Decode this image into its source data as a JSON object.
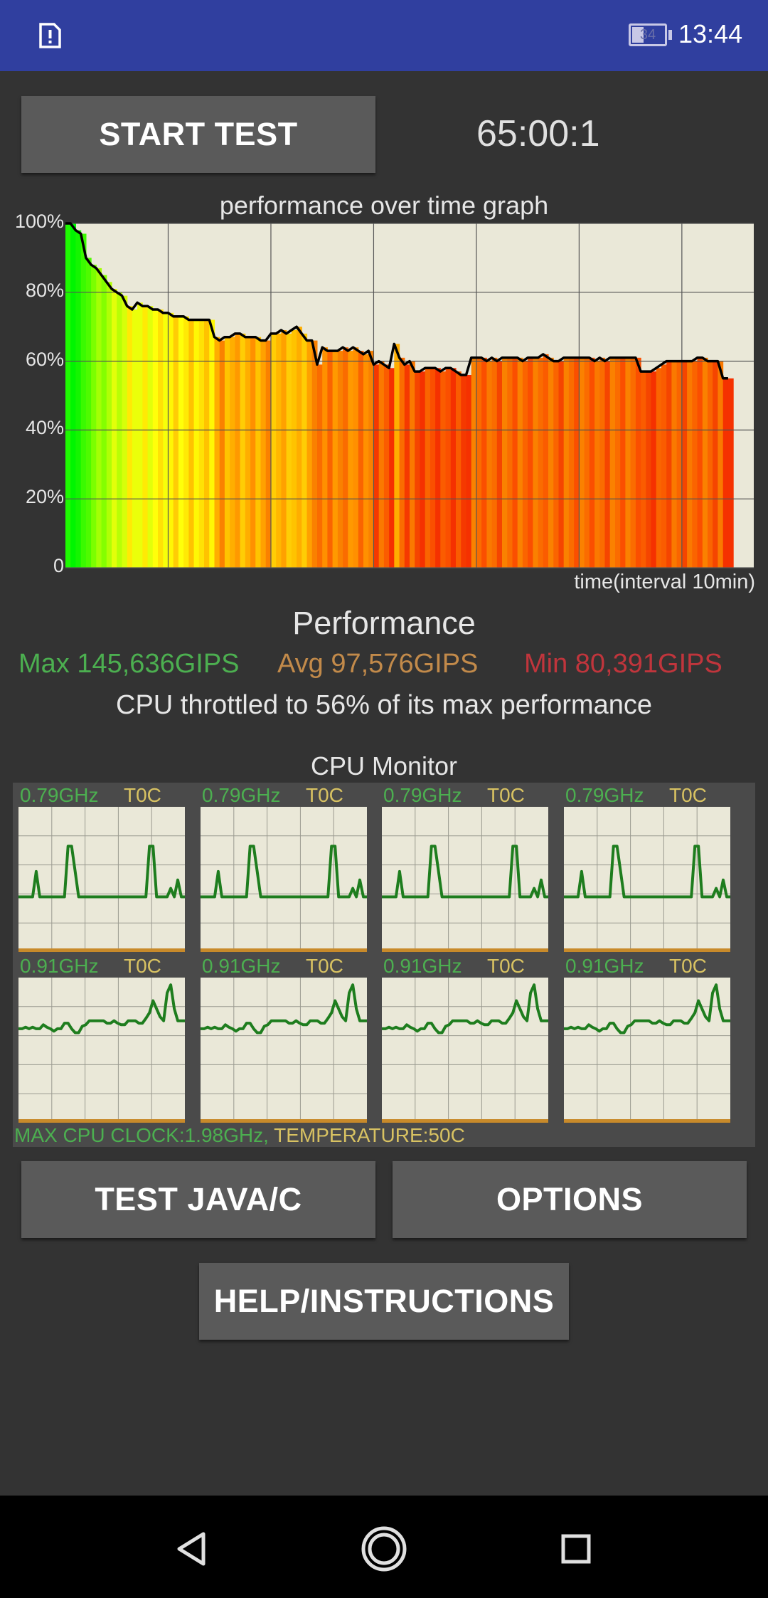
{
  "status_bar": {
    "battery_level": "34",
    "time": "13:44",
    "notification_icon": "alert-document-icon"
  },
  "controls": {
    "start_label": "START TEST",
    "timer": "65:00:1"
  },
  "performance_graph": {
    "title": "performance over time graph",
    "y_ticks": [
      "100%",
      "80%",
      "60%",
      "40%",
      "20%",
      "0"
    ],
    "x_label": "time(interval 10min)"
  },
  "chart_data": {
    "type": "area",
    "title": "performance over time graph",
    "xlabel": "time(interval 10min)",
    "ylabel": "",
    "ylim": [
      0,
      100
    ],
    "grid": true,
    "x": [
      0,
      0.5,
      1,
      1.5,
      2,
      2.5,
      3,
      3.5,
      4,
      4.5,
      5,
      5.5,
      6,
      6.5,
      7,
      7.5,
      8,
      8.5,
      9,
      9.5,
      10,
      10.5,
      11,
      11.5,
      12,
      12.5,
      13,
      13.5,
      14,
      14.5,
      15,
      15.5,
      16,
      16.5,
      17,
      17.5,
      18,
      18.5,
      19,
      19.5,
      20,
      20.5,
      21,
      21.5,
      22,
      22.5,
      23,
      23.5,
      24,
      24.5,
      25,
      25.5,
      26,
      26.5,
      27,
      27.5,
      28,
      28.5,
      29,
      29.5,
      30,
      30.5,
      31,
      31.5,
      32,
      32.5,
      33,
      33.5,
      34,
      34.5,
      35,
      35.5,
      36,
      36.5,
      37,
      37.5,
      38,
      38.5,
      39,
      39.5,
      40,
      40.5,
      41,
      41.5,
      42,
      42.5,
      43,
      43.5,
      44,
      44.5,
      45,
      45.5,
      46,
      46.5,
      47,
      47.5,
      48,
      48.5,
      49,
      49.5,
      50,
      50.5,
      51,
      51.5,
      52,
      52.5,
      53,
      53.5,
      54,
      54.5,
      55,
      55.5,
      56,
      56.5,
      57,
      57.5,
      58,
      58.5,
      59,
      59.5,
      60,
      60.5,
      61,
      61.5,
      62,
      62.5,
      63,
      63.5,
      64,
      64.5
    ],
    "values": [
      100,
      100,
      98,
      97,
      90,
      88,
      87,
      85,
      83,
      81,
      80,
      79,
      76,
      75,
      77,
      76,
      76,
      75,
      75,
      74,
      74,
      73,
      73,
      73,
      72,
      72,
      72,
      72,
      72,
      67,
      66,
      67,
      67,
      68,
      68,
      67,
      67,
      67,
      66,
      66,
      68,
      68,
      69,
      68,
      69,
      70,
      68,
      66,
      66,
      59,
      64,
      63,
      63,
      63,
      64,
      63,
      64,
      63,
      62,
      63,
      59,
      60,
      59,
      58,
      65,
      61,
      59,
      60,
      57,
      57,
      58,
      58,
      58,
      57,
      58,
      58,
      57,
      56,
      56,
      61,
      61,
      61,
      60,
      61,
      60,
      61,
      61,
      61,
      61,
      60,
      61,
      61,
      61,
      62,
      61,
      60,
      60,
      61,
      61,
      61,
      61,
      61,
      61,
      60,
      61,
      60,
      61,
      61,
      61,
      61,
      61,
      61,
      57,
      57,
      57,
      58,
      59,
      60,
      60,
      60,
      60,
      60,
      60,
      61,
      61,
      60,
      60,
      60,
      55,
      55
    ]
  },
  "performance": {
    "heading": "Performance",
    "max": "Max 145,636GIPS",
    "avg": "Avg 97,576GIPS",
    "min": "Min 80,391GIPS",
    "throttle_text": "CPU throttled to 56% of its max performance"
  },
  "cpu_monitor": {
    "heading": "CPU Monitor",
    "cores": [
      {
        "freq": "0.79GHz",
        "temp": "T0C",
        "load": [
          0,
          0,
          0,
          0,
          0,
          30,
          0,
          0,
          0,
          0,
          0,
          0,
          0,
          0,
          60,
          60,
          30,
          0,
          0,
          0,
          0,
          0,
          0,
          0,
          0,
          0,
          0,
          0,
          0,
          0,
          0,
          0,
          0,
          0,
          0,
          0,
          0,
          60,
          60,
          0,
          0,
          0,
          0,
          10,
          0,
          20,
          0,
          0
        ]
      },
      {
        "freq": "0.79GHz",
        "temp": "T0C",
        "load": [
          0,
          0,
          0,
          0,
          0,
          30,
          0,
          0,
          0,
          0,
          0,
          0,
          0,
          0,
          60,
          60,
          30,
          0,
          0,
          0,
          0,
          0,
          0,
          0,
          0,
          0,
          0,
          0,
          0,
          0,
          0,
          0,
          0,
          0,
          0,
          0,
          0,
          60,
          60,
          0,
          0,
          0,
          0,
          10,
          0,
          20,
          0,
          0
        ]
      },
      {
        "freq": "0.79GHz",
        "temp": "T0C",
        "load": [
          0,
          0,
          0,
          0,
          0,
          30,
          0,
          0,
          0,
          0,
          0,
          0,
          0,
          0,
          60,
          60,
          30,
          0,
          0,
          0,
          0,
          0,
          0,
          0,
          0,
          0,
          0,
          0,
          0,
          0,
          0,
          0,
          0,
          0,
          0,
          0,
          0,
          60,
          60,
          0,
          0,
          0,
          0,
          10,
          0,
          20,
          0,
          0
        ]
      },
      {
        "freq": "0.79GHz",
        "temp": "T0C",
        "load": [
          0,
          0,
          0,
          0,
          0,
          30,
          0,
          0,
          0,
          0,
          0,
          0,
          0,
          0,
          60,
          60,
          30,
          0,
          0,
          0,
          0,
          0,
          0,
          0,
          0,
          0,
          0,
          0,
          0,
          0,
          0,
          0,
          0,
          0,
          0,
          0,
          0,
          60,
          60,
          0,
          0,
          0,
          0,
          10,
          0,
          20,
          0,
          0
        ]
      },
      {
        "freq": "0.91GHz",
        "temp": "T0C",
        "load": [
          45,
          45,
          47,
          45,
          47,
          45,
          45,
          50,
          47,
          45,
          42,
          45,
          45,
          52,
          52,
          45,
          40,
          40,
          48,
          50,
          55,
          55,
          55,
          55,
          55,
          52,
          52,
          55,
          52,
          50,
          50,
          55,
          55,
          55,
          52,
          52,
          58,
          65,
          80,
          70,
          60,
          55,
          90,
          100,
          70,
          55,
          55,
          55
        ]
      },
      {
        "freq": "0.91GHz",
        "temp": "T0C",
        "load": [
          45,
          45,
          47,
          45,
          47,
          45,
          45,
          50,
          47,
          45,
          42,
          45,
          45,
          52,
          52,
          45,
          40,
          40,
          48,
          50,
          55,
          55,
          55,
          55,
          55,
          52,
          52,
          55,
          52,
          50,
          50,
          55,
          55,
          55,
          52,
          52,
          58,
          65,
          80,
          70,
          60,
          55,
          90,
          100,
          70,
          55,
          55,
          55
        ]
      },
      {
        "freq": "0.91GHz",
        "temp": "T0C",
        "load": [
          45,
          45,
          47,
          45,
          47,
          45,
          45,
          50,
          47,
          45,
          42,
          45,
          45,
          52,
          52,
          45,
          40,
          40,
          48,
          50,
          55,
          55,
          55,
          55,
          55,
          52,
          52,
          55,
          52,
          50,
          50,
          55,
          55,
          55,
          52,
          52,
          58,
          65,
          80,
          70,
          60,
          55,
          90,
          100,
          70,
          55,
          55,
          55
        ]
      },
      {
        "freq": "0.91GHz",
        "temp": "T0C",
        "load": [
          45,
          45,
          47,
          45,
          47,
          45,
          45,
          50,
          47,
          45,
          42,
          45,
          45,
          52,
          52,
          45,
          40,
          40,
          48,
          50,
          55,
          55,
          55,
          55,
          55,
          52,
          52,
          55,
          52,
          50,
          50,
          55,
          55,
          55,
          52,
          52,
          58,
          65,
          80,
          70,
          60,
          55,
          90,
          100,
          70,
          55,
          55,
          55
        ]
      }
    ],
    "max_clock": "MAX CPU CLOCK:1.98GHz,",
    "temperature": "TEMPERATURE:50C"
  },
  "buttons": {
    "test_java_c": "TEST JAVA/C",
    "options": "OPTIONS",
    "help": "HELP/INSTRUCTIONS"
  },
  "nav_bar": {
    "back_icon": "back-triangle-icon",
    "home_icon": "home-circle-icon",
    "recents_icon": "recents-square-icon"
  },
  "colors": {
    "status_bar": "#303f9f",
    "background": "#333333",
    "graph_background": "#eae8d8",
    "line": "#000000",
    "cpu_line": "#1e7d1e",
    "green_text": "#4caf50",
    "yellow_text": "#d8c262",
    "avg_text": "#c28a4a",
    "min_text": "#c0353c"
  }
}
